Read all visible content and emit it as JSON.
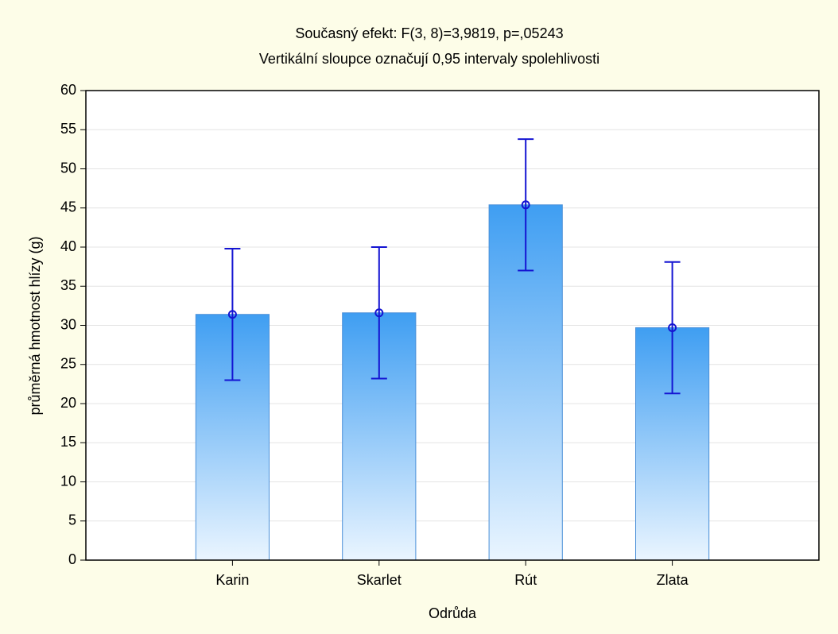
{
  "chart_data": {
    "type": "bar",
    "title": "Současný efekt: F(3, 8)=3,9819, p=,05243",
    "subtitle": "Vertikální sloupce označují 0,95 intervaly spolehlivosti",
    "x_label": "Odrůda",
    "y_label": "průměrná hmotnost hlízy (g)",
    "categories": [
      "Karin",
      "Skarlet",
      "Rút",
      "Zlata"
    ],
    "values": [
      31.4,
      31.6,
      45.4,
      29.7
    ],
    "errors": [
      8.4,
      8.4,
      8.4,
      8.4
    ],
    "color": "#3f9ef2",
    "error_color": "#1414d2",
    "ylim": [
      0,
      60
    ],
    "yticks": [
      0,
      5,
      10,
      15,
      20,
      25,
      30,
      35,
      40,
      45,
      50,
      55,
      60
    ],
    "grid": true
  }
}
